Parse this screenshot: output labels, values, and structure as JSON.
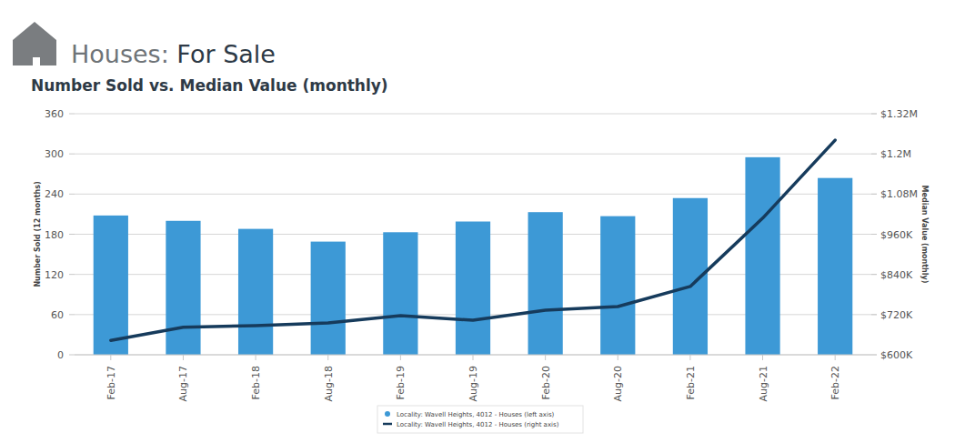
{
  "chart_data": {
    "type": "bar",
    "title": "Houses: For Sale",
    "subtitle": "Number Sold vs. Median Value (monthly)",
    "y_label": "Number Sold (12 months)",
    "y2_label": "Median Value (monthly)",
    "categories": [
      "Feb-17",
      "Aug-17",
      "Feb-18",
      "Aug-18",
      "Feb-19",
      "Aug-19",
      "Feb-20",
      "Aug-20",
      "Feb-21",
      "Aug-21",
      "Feb-22"
    ],
    "series": [
      {
        "name": "Locality: Wavell Heights, 4012 - Houses (left axis)",
        "type": "bar",
        "color": "#3d99d6",
        "values": [
          208,
          200,
          188,
          169,
          183,
          199,
          213,
          207,
          234,
          295,
          264
        ]
      },
      {
        "name": "Locality: Wavell Heights, 4012 - Houses (right axis)",
        "type": "line",
        "axis": "y2",
        "color": "#163b5c",
        "values": [
          643000,
          682000,
          687000,
          695000,
          717000,
          703000,
          733000,
          744000,
          804000,
          1008000,
          1241000
        ]
      }
    ],
    "ylim": [
      0,
      360
    ],
    "yticks": [
      0,
      60,
      120,
      180,
      240,
      300,
      360
    ],
    "y2lim": [
      600000,
      1320000
    ],
    "y2ticks": [
      {
        "value": 600000,
        "label": "$600K"
      },
      {
        "value": 720000,
        "label": "$720K"
      },
      {
        "value": 840000,
        "label": "$840K"
      },
      {
        "value": 960000,
        "label": "$960K"
      },
      {
        "value": 1080000,
        "label": "$1.08M"
      },
      {
        "value": 1200000,
        "label": "$1.2M"
      },
      {
        "value": 1320000,
        "label": "$1.32M"
      }
    ],
    "grid": true,
    "legend": "bottom"
  }
}
